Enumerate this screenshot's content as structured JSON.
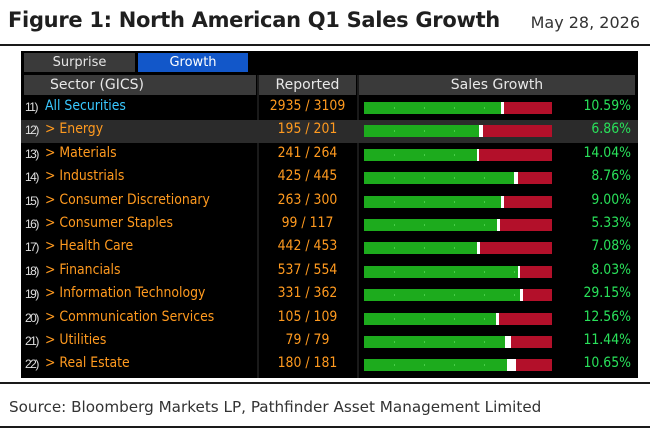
{
  "header": {
    "title": "Figure 1: North American Q1 Sales Growth",
    "date": "May 28, 2026"
  },
  "tabs": [
    {
      "label": "Surprise",
      "active": false
    },
    {
      "label": "Growth",
      "active": true
    }
  ],
  "columns": {
    "sector": "Sector (GICS)",
    "reported": "Reported",
    "growth": "Sales Growth"
  },
  "rows": [
    {
      "num": "11)",
      "name": "All Securities",
      "reported": "2935 / 3109",
      "reported_fraction": 0.944,
      "growth": "10.59%",
      "all": true
    },
    {
      "num": "12)",
      "name": "> Energy",
      "reported": "195 / 201",
      "reported_fraction": 0.97,
      "growth": "6.86%"
    },
    {
      "num": "13)",
      "name": "> Materials",
      "reported": "241 / 264",
      "reported_fraction": 0.913,
      "growth": "14.04%"
    },
    {
      "num": "14)",
      "name": "> Industrials",
      "reported": "425 / 445",
      "reported_fraction": 0.955,
      "growth": "8.76%"
    },
    {
      "num": "15)",
      "name": "> Consumer Discretionary",
      "reported": "263 / 300",
      "reported_fraction": 0.877,
      "growth": "9.00%"
    },
    {
      "num": "16)",
      "name": "> Consumer Staples",
      "reported": "99 / 117",
      "reported_fraction": 0.846,
      "growth": "5.33%"
    },
    {
      "num": "17)",
      "name": "> Health Care",
      "reported": "442 / 453",
      "reported_fraction": 0.976,
      "growth": "7.08%"
    },
    {
      "num": "18)",
      "name": "> Financials",
      "reported": "537 / 554",
      "reported_fraction": 0.969,
      "growth": "8.03%"
    },
    {
      "num": "19)",
      "name": "> Information Technology",
      "reported": "331 / 362",
      "reported_fraction": 0.914,
      "growth": "29.15%"
    },
    {
      "num": "20)",
      "name": "> Communication Services",
      "reported": "105 / 109",
      "reported_fraction": 0.963,
      "growth": "12.56%"
    },
    {
      "num": "21)",
      "name": "> Utilities",
      "reported": "79 / 79",
      "reported_fraction": 1.0,
      "growth": "11.44%"
    },
    {
      "num": "22)",
      "name": "> Real Estate",
      "reported": "180 / 181",
      "reported_fraction": 0.994,
      "growth": "10.65%"
    }
  ],
  "bar_levels": [
    0.73,
    0.61,
    0.6,
    0.8,
    0.73,
    0.71,
    0.6,
    0.82,
    0.83,
    0.7,
    0.75,
    0.76
  ],
  "mark_widths": [
    3,
    4,
    2,
    4,
    3,
    3,
    3,
    2,
    3,
    3,
    6,
    9
  ],
  "colors": {
    "accent": "#ff9a1f",
    "all_securities": "#39c8ff",
    "growth_text": "#29e15a",
    "bar_positive": "#1dab1d",
    "bar_negative": "#b3102a",
    "active_tab": "#1257c9"
  },
  "footer": {
    "source": "Source: Bloomberg Markets LP, Pathfinder Asset Management Limited"
  }
}
